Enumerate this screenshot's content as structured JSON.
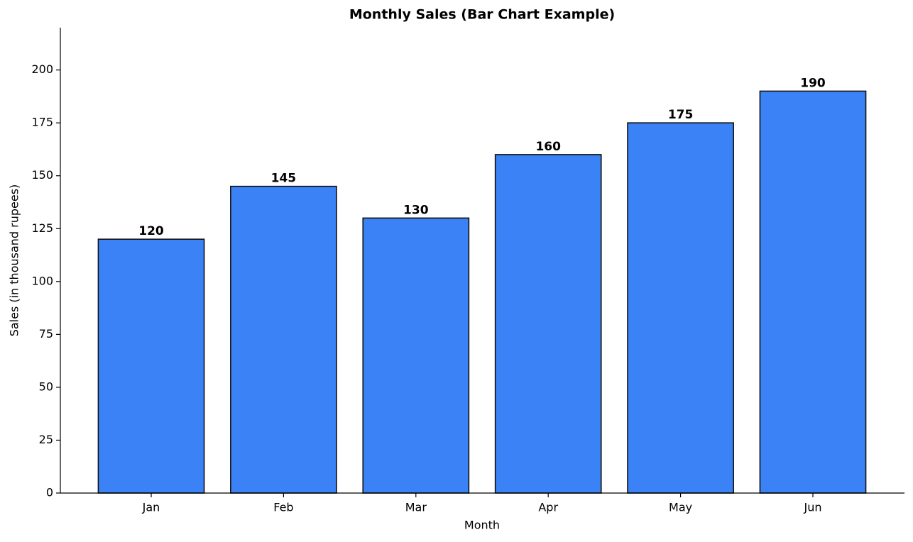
{
  "chart_data": {
    "type": "bar",
    "title": "Monthly Sales (Bar Chart Example)",
    "x_label": "Month",
    "y_label": "Sales (in thousand rupees)",
    "categories": [
      "Jan",
      "Feb",
      "Mar",
      "Apr",
      "May",
      "Jun"
    ],
    "values": [
      120,
      145,
      130,
      160,
      175,
      190
    ],
    "color": "#3b82f6",
    "ylim": [
      0,
      220
    ],
    "yticks": [
      0,
      25,
      50,
      75,
      100,
      125,
      150,
      175,
      200
    ],
    "grid": false
  }
}
